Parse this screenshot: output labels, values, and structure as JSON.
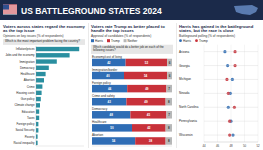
{
  "header": {
    "title": "US BATTLEGROUND STATES 2024"
  },
  "chart_data": [
    {
      "type": "bar",
      "orientation": "horizontal",
      "title": "Voters across states regard the economy as the top issue",
      "subtitle": "Opinions on key issues (% of respondents)",
      "annotation": "Which is the most important problem facing the country?",
      "categories": [
        "Inflation/prices",
        "Jobs and the economy",
        "Immigration",
        "Democracy",
        "Healthcare",
        "Abortion",
        "Crime",
        "Housing costs",
        "Gun policy",
        "Climate change",
        "Education",
        "Taxes",
        "Foreign policy",
        "Social Security",
        "Poverty",
        "Racial inequality"
      ],
      "values": [
        27,
        21,
        13,
        8,
        6,
        5,
        4,
        3.5,
        3,
        2.5,
        2,
        2,
        1.5,
        1.5,
        1,
        1
      ],
      "color": "#2a8fa0",
      "xlim": [
        0,
        30
      ],
      "tick_labels": "y"
    },
    {
      "type": "bar",
      "orientation": "horizontal",
      "stacked": true,
      "title": "Voters rate Trump as better placed to handle the top issues",
      "subtitle": "Approval of candidates (% of respondents)",
      "annotation": "Which candidate would do a better job on each of the following issues?",
      "categories": [
        "Economy/cost of living",
        "Immigration/border",
        "Foreign policy",
        "Crime and safety",
        "Democracy",
        "Healthcare",
        "Abortion"
      ],
      "series": [
        {
          "name": "Harris",
          "color": "#2f6db5",
          "values": [
            42,
            40,
            44,
            43,
            48,
            50,
            54
          ]
        },
        {
          "name": "Trump",
          "color": "#c8313a",
          "values": [
            52,
            54,
            49,
            49,
            45,
            42,
            38
          ]
        },
        {
          "name": "Neither",
          "color": "#b8b8b8",
          "values": [
            6,
            6,
            7,
            8,
            7,
            8,
            8
          ]
        }
      ],
      "xlim": [
        0,
        100
      ],
      "data_labels": true,
      "legend": "top",
      "tick_labels": "y"
    },
    {
      "type": "dot",
      "orientation": "horizontal",
      "title": "Harris has gained in the battleground states, but the race is close",
      "subtitle": "Battleground polling (% of respondents)",
      "categories": [
        "Arizona",
        "Georgia",
        "Michigan",
        "Nevada",
        "North Carolina",
        "Pennsylvania",
        "Wisconsin"
      ],
      "series": [
        {
          "name": "Harris",
          "color": "#2f6db5",
          "values": [
            47.1,
            47.5,
            48.2,
            47.9,
            47.6,
            48.0,
            48.3
          ]
        },
        {
          "name": "Trump",
          "color": "#c8313a",
          "values": [
            48.6,
            48.6,
            47.4,
            47.6,
            48.5,
            47.8,
            47.8
          ]
        }
      ],
      "xlim": [
        44,
        52
      ],
      "xticks": [
        44,
        46,
        48,
        50,
        52
      ],
      "grid": true,
      "legend": "top",
      "marker": "circle"
    }
  ]
}
